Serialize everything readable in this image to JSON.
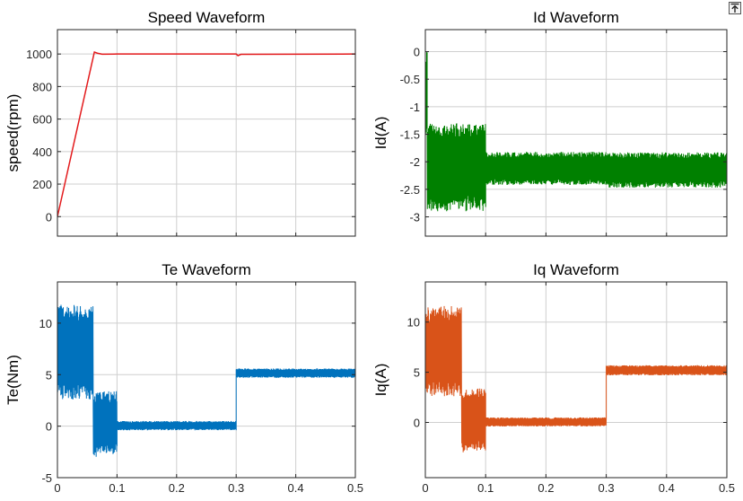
{
  "figure_toolbar": {
    "export_icon": "export-icon"
  },
  "colors": {
    "speed": "#e31a1c",
    "id": "#008000",
    "te": "#0072bd",
    "iq": "#d95319",
    "grid": "#cfcfcf",
    "axis": "#262626"
  },
  "chart_data": [
    {
      "id": "speed",
      "type": "line",
      "title": "Speed Waveform",
      "xlabel": "",
      "ylabel": "speed(rpm)",
      "xlim": [
        0,
        0.5
      ],
      "ylim": [
        -120,
        1150
      ],
      "xticks": [
        0,
        0.1,
        0.2,
        0.3,
        0.4,
        0.5
      ],
      "xtick_labels": [],
      "yticks": [
        0,
        200,
        400,
        600,
        800,
        1000
      ],
      "ytick_labels": [
        "0",
        "200",
        "400",
        "600",
        "800",
        "1000"
      ],
      "grid": true,
      "series": [
        {
          "name": "speed",
          "x": [
            0,
            0.062,
            0.067,
            0.075,
            0.1,
            0.3,
            0.303,
            0.308,
            0.5
          ],
          "y": [
            0,
            1012,
            1005,
            999,
            1000,
            1000,
            990,
            998,
            1000
          ]
        }
      ]
    },
    {
      "id": "id",
      "type": "line",
      "title": "Id Waveform",
      "xlabel": "",
      "ylabel": "Id(A)",
      "xlim": [
        0,
        0.5
      ],
      "ylim": [
        -3.35,
        0.4
      ],
      "xticks": [
        0,
        0.1,
        0.2,
        0.3,
        0.4,
        0.5
      ],
      "xtick_labels": [],
      "yticks": [
        0,
        -0.5,
        -1,
        -1.5,
        -2,
        -2.5,
        -3
      ],
      "ytick_labels": [
        "0",
        "-0.5",
        "-1",
        "-1.5",
        "-2",
        "-2.5",
        "-3"
      ],
      "grid": true,
      "series": [
        {
          "name": "Id",
          "segments": [
            {
              "x0": 0,
              "x1": 0.003,
              "lo": -1.6,
              "hi": 0.05
            },
            {
              "x0": 0.003,
              "x1": 0.1,
              "lo": -2.9,
              "hi": -1.3
            },
            {
              "x0": 0.1,
              "x1": 0.3,
              "lo": -2.42,
              "hi": -1.82
            },
            {
              "x0": 0.3,
              "x1": 0.5,
              "lo": -2.47,
              "hi": -1.83
            }
          ]
        }
      ]
    },
    {
      "id": "te",
      "type": "line",
      "title": "Te Waveform",
      "xlabel": "",
      "ylabel": "Te(Nm)",
      "xlim": [
        0,
        0.5
      ],
      "ylim": [
        -5,
        14
      ],
      "xticks": [
        0,
        0.1,
        0.2,
        0.3,
        0.4,
        0.5
      ],
      "xtick_labels": [
        "0",
        "0.1",
        "0.2",
        "0.3",
        "0.4",
        "0.5"
      ],
      "yticks": [
        -5,
        0,
        5,
        10
      ],
      "ytick_labels": [
        "-5",
        "0",
        "5",
        "10"
      ],
      "grid": true,
      "series": [
        {
          "name": "Te",
          "segments": [
            {
              "x0": 0,
              "x1": 0.06,
              "lo": 2.6,
              "hi": 11.8
            },
            {
              "x0": 0.06,
              "x1": 0.065,
              "lo": -3.0,
              "hi": 3.0
            },
            {
              "x0": 0.065,
              "x1": 0.1,
              "lo": -2.8,
              "hi": 3.4
            },
            {
              "x0": 0.1,
              "x1": 0.3,
              "lo": -0.4,
              "hi": 0.5
            },
            {
              "x0": 0.3,
              "x1": 0.5,
              "lo": 4.7,
              "hi": 5.6
            }
          ]
        }
      ]
    },
    {
      "id": "iq",
      "type": "line",
      "title": "Iq Waveform",
      "xlabel": "",
      "ylabel": "Iq(A)",
      "xlim": [
        0,
        0.5
      ],
      "ylim": [
        -5.5,
        14
      ],
      "xticks": [
        0,
        0.1,
        0.2,
        0.3,
        0.4,
        0.5
      ],
      "xtick_labels": [
        "0",
        "0.1",
        "0.2",
        "0.3",
        "0.4",
        "0.5"
      ],
      "yticks": [
        0,
        5,
        10
      ],
      "ytick_labels": [
        "0",
        "5",
        "10"
      ],
      "grid": true,
      "series": [
        {
          "name": "Iq",
          "segments": [
            {
              "x0": 0,
              "x1": 0.06,
              "lo": 2.6,
              "hi": 11.6
            },
            {
              "x0": 0.06,
              "x1": 0.065,
              "lo": -3.0,
              "hi": 3.0
            },
            {
              "x0": 0.065,
              "x1": 0.1,
              "lo": -2.8,
              "hi": 3.4
            },
            {
              "x0": 0.1,
              "x1": 0.3,
              "lo": -0.4,
              "hi": 0.5
            },
            {
              "x0": 0.3,
              "x1": 0.5,
              "lo": 4.7,
              "hi": 5.7
            }
          ]
        }
      ]
    }
  ]
}
